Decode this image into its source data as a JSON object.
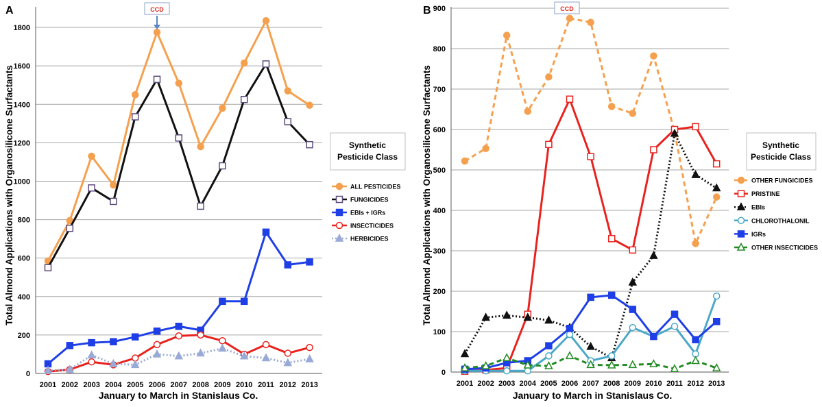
{
  "figure": {
    "accent": "#d9261c"
  },
  "chart_data": [
    {
      "type": "line",
      "panel_label": "A",
      "xlabel": "January to March in Stanislaus Co.",
      "ylabel": "Total Almond Applications with Organosilicone Surfactants",
      "x": [
        "2001",
        "2002",
        "2003",
        "2004",
        "2005",
        "2006",
        "2007",
        "2008",
        "2009",
        "2010",
        "2011",
        "2012",
        "2013"
      ],
      "ylim": [
        0,
        1900
      ],
      "yticks": [
        0,
        200,
        400,
        600,
        800,
        1000,
        1200,
        1400,
        1600,
        1800
      ],
      "grid": true,
      "annotation": {
        "text": "CCD",
        "x": "2006"
      },
      "legend": {
        "title_line1": "Synthetic",
        "title_line2": "Pesticide Class",
        "position": "right"
      },
      "series": [
        {
          "name": "ALL PESTICIDES",
          "color": "#f5a04e",
          "dash": "",
          "marker": "circle",
          "marker_fill": "#f5a04e",
          "values": [
            585,
            795,
            1130,
            980,
            1450,
            1775,
            1510,
            1180,
            1380,
            1615,
            1835,
            1470,
            1395
          ]
        },
        {
          "name": "FUNGICIDES",
          "color": "#111111",
          "dash": "",
          "marker": "square-open",
          "marker_fill": "#ffffff",
          "marker_stroke": "#5a4a7a",
          "values": [
            550,
            755,
            965,
            895,
            1335,
            1530,
            1225,
            870,
            1080,
            1425,
            1610,
            1310,
            1190
          ]
        },
        {
          "name": "EBIs + IGRs",
          "color": "#1f3fe6",
          "dash": "",
          "marker": "square",
          "marker_fill": "#1f3fe6",
          "values": [
            50,
            145,
            160,
            165,
            190,
            220,
            245,
            225,
            375,
            375,
            735,
            565,
            580
          ]
        },
        {
          "name": "INSECTICIDES",
          "color": "#e8231f",
          "dash": "",
          "marker": "circle-open",
          "marker_fill": "#ffffff",
          "marker_stroke": "#e8231f",
          "values": [
            10,
            20,
            60,
            45,
            80,
            150,
            195,
            200,
            170,
            100,
            150,
            105,
            135
          ]
        },
        {
          "name": "HERBICIDES",
          "color": "#9aaad6",
          "dash": "2,3",
          "marker": "triangle",
          "marker_fill": "#9aaad6",
          "values": [
            15,
            20,
            95,
            50,
            45,
            100,
            90,
            105,
            130,
            90,
            80,
            55,
            75
          ]
        }
      ]
    },
    {
      "type": "line",
      "panel_label": "B",
      "xlabel": "January to March in Stanislaus Co.",
      "ylabel": "Total Almond Applications with Organosilicone Surfactants",
      "x": [
        "2001",
        "2002",
        "2003",
        "2004",
        "2005",
        "2006",
        "2007",
        "2008",
        "2009",
        "2010",
        "2011",
        "2012",
        "2013"
      ],
      "ylim": [
        0,
        900
      ],
      "yticks": [
        0,
        100,
        200,
        300,
        400,
        500,
        600,
        700,
        800,
        900
      ],
      "grid": true,
      "annotation": {
        "text": "CCD",
        "x": "2006"
      },
      "legend": {
        "title_line1": "Synthetic",
        "title_line2": "Pesticide Class",
        "position": "right"
      },
      "series": [
        {
          "name": "OTHER FUNGICIDES",
          "color": "#f5a04e",
          "dash": "7,5",
          "marker": "circle",
          "marker_fill": "#f5a04e",
          "values": [
            522,
            553,
            833,
            645,
            730,
            875,
            865,
            657,
            640,
            782,
            595,
            318,
            433
          ]
        },
        {
          "name": "PRISTINE",
          "color": "#e8231f",
          "dash": "",
          "marker": "square-open",
          "marker_fill": "#ffffff",
          "marker_stroke": "#e8231f",
          "values": [
            2,
            5,
            10,
            143,
            563,
            675,
            533,
            330,
            302,
            550,
            600,
            607,
            515
          ]
        },
        {
          "name": "EBIs",
          "color": "#111111",
          "dash": "2,3",
          "marker": "triangle",
          "marker_fill": "#111111",
          "values": [
            45,
            135,
            140,
            135,
            128,
            110,
            63,
            35,
            222,
            288,
            590,
            488,
            455
          ]
        },
        {
          "name": "CHLOROTHALONIL",
          "color": "#4aa8c8",
          "dash": "",
          "marker": "circle-open",
          "marker_fill": "#ffffff",
          "marker_stroke": "#4aa8c8",
          "values": [
            3,
            3,
            3,
            3,
            40,
            93,
            28,
            40,
            110,
            88,
            113,
            45,
            188
          ]
        },
        {
          "name": "IGRs",
          "color": "#1f3fe6",
          "dash": "",
          "marker": "square",
          "marker_fill": "#1f3fe6",
          "values": [
            7,
            10,
            23,
            28,
            65,
            108,
            185,
            190,
            155,
            88,
            143,
            80,
            125
          ]
        },
        {
          "name": "OTHER INSECTICIDES",
          "color": "#228b22",
          "dash": "7,5",
          "marker": "triangle-open",
          "marker_fill": "#ffffff",
          "marker_stroke": "#228b22",
          "values": [
            10,
            15,
            35,
            17,
            15,
            40,
            18,
            17,
            18,
            20,
            8,
            28,
            10
          ]
        }
      ]
    }
  ]
}
